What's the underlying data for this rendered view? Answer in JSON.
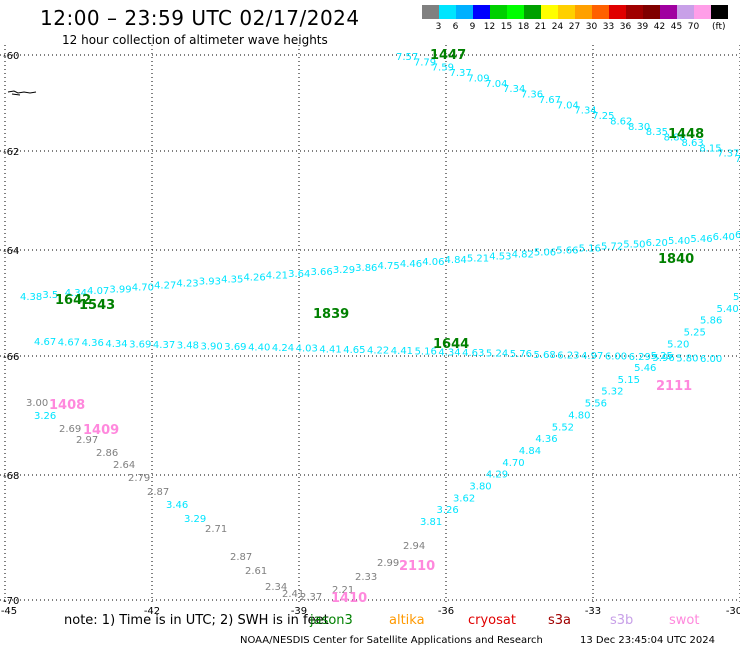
{
  "header": {
    "title": "12:00 – 23:59 UTC 02/17/2024",
    "subtitle": "12 hour collection of altimeter wave heights"
  },
  "colorbar": {
    "colors": [
      "#808080",
      "#00e5ff",
      "#00b0ff",
      "#0000ff",
      "#00d000",
      "#00ff00",
      "#00a000",
      "#ffff00",
      "#ffd000",
      "#ffa000",
      "#ff6000",
      "#e00000",
      "#a00000",
      "#800000",
      "#a000a0",
      "#c8a0e8",
      "#ff9ee8",
      "#000000"
    ],
    "labels": [
      "3",
      "6",
      "9",
      "12",
      "15",
      "18",
      "21",
      "24",
      "27",
      "30",
      "33",
      "36",
      "39",
      "42",
      "45",
      "70"
    ],
    "unit": "(ft)"
  },
  "map": {
    "lon_ticks": [
      "-45",
      "-42",
      "-39",
      "-36",
      "-33",
      "-30"
    ],
    "lat_ticks": [
      "-60",
      "-62",
      "-64",
      "-66",
      "-68",
      "-70"
    ],
    "tracks": [
      {
        "name": "1447",
        "color": "#00e5ff",
        "label_color": "#008000",
        "values": [
          "7.57",
          "7.79",
          "7.59",
          "7.37",
          "7.09",
          "7.04",
          "7.34",
          "7.36",
          "7.67",
          "7.04",
          "7.34",
          "7.25",
          "8.62",
          "8.30",
          "8.35",
          "8.88",
          "8.63",
          "8.15",
          "7.37",
          "7.7"
        ]
      },
      {
        "name": "1840",
        "color": "#00e5ff",
        "label_color": "#008000",
        "values": [
          "4.38",
          "3.5",
          "4.34",
          "4.07",
          "3.99",
          "4.70",
          "4.27",
          "4.23",
          "3.93",
          "4.35",
          "4.26",
          "4.21",
          "3.64",
          "3.66",
          "3.29",
          "3.86",
          "4.75",
          "4.46",
          "4.06",
          "4.84",
          "5.21",
          "4.53",
          "4.82",
          "5.06",
          "5.66",
          "5.16",
          "5.72",
          "5.50",
          "6.20",
          "5.40",
          "5.46",
          "6.40",
          "6"
        ]
      },
      {
        "name": "1644",
        "color": "#00e5ff",
        "label_color": "#008000",
        "values": [
          "4.67",
          "4.67",
          "4.36",
          "4.34",
          "3.69",
          "4.37",
          "3.48",
          "3.90",
          "3.69",
          "4.40",
          "4.24",
          "4.03",
          "4.41",
          "4.65",
          "4.22",
          "4.41",
          "5.16",
          "4.34",
          "4.63",
          "5.24",
          "5.76",
          "5.68",
          "6.23",
          "4.97",
          "6.00",
          "6.29",
          "5.96",
          "5.80",
          "6.00"
        ]
      },
      {
        "name": "2111",
        "color": "#00e5ff",
        "label_color": "#ff88dd",
        "values": [
          "5.4",
          "5.40",
          "5.86",
          "5.25",
          "5.20",
          "5.25",
          "5.46",
          "5.15",
          "5.32",
          "5.56",
          "4.80",
          "5.52",
          "4.36",
          "4.84",
          "4.70",
          "4.29",
          "3.80",
          "3.62",
          "3.26",
          "3.81"
        ]
      },
      {
        "name": "1408",
        "color": "#808080",
        "label_color": "#ff88dd",
        "values": [
          "3.00",
          "2.69",
          "2.97",
          "2.86",
          "2.64",
          "2.79",
          "2.87"
        ]
      },
      {
        "name": "1409",
        "color": "#00e5ff",
        "label_color": "#ff88dd",
        "values": [
          "3.26",
          "3.46",
          "3.29"
        ]
      },
      {
        "name": "2110",
        "color": "#808080",
        "label_color": "#ff88dd",
        "values": [
          "2.71",
          "2.87",
          "2.61",
          "2.34",
          "2.41",
          "2.37",
          "2.21",
          "2.33",
          "2.99",
          "2.94"
        ]
      }
    ],
    "track_labels": [
      {
        "text": "1447",
        "color": "#008000"
      },
      {
        "text": "1448",
        "color": "#008000"
      },
      {
        "text": "1642",
        "color": "#008000"
      },
      {
        "text": "1543",
        "color": "#008000"
      },
      {
        "text": "1839",
        "color": "#008000"
      },
      {
        "text": "1840",
        "color": "#008000"
      },
      {
        "text": "1644",
        "color": "#008000"
      },
      {
        "text": "1408",
        "color": "#ff88dd"
      },
      {
        "text": "1409",
        "color": "#ff88dd"
      },
      {
        "text": "2111",
        "color": "#ff88dd"
      },
      {
        "text": "2110",
        "color": "#ff88dd"
      },
      {
        "text": "1410",
        "color": "#ff88dd"
      }
    ]
  },
  "legend": {
    "note": "note:  1) Time is in UTC; 2) SWH is in feet",
    "satellites": [
      {
        "name": "jason3",
        "color": "#008000"
      },
      {
        "name": "altika",
        "color": "#ff9900"
      },
      {
        "name": "cryosat",
        "color": "#e00000"
      },
      {
        "name": "s3a",
        "color": "#a00000"
      },
      {
        "name": "s3b",
        "color": "#c8a0e8"
      },
      {
        "name": "swot",
        "color": "#ff88dd"
      }
    ]
  },
  "footer": {
    "credit": "NOAA/NESDIS Center for Satellite Applications and Research",
    "timestamp": "13 Dec 23:45:04 UTC 2024"
  }
}
